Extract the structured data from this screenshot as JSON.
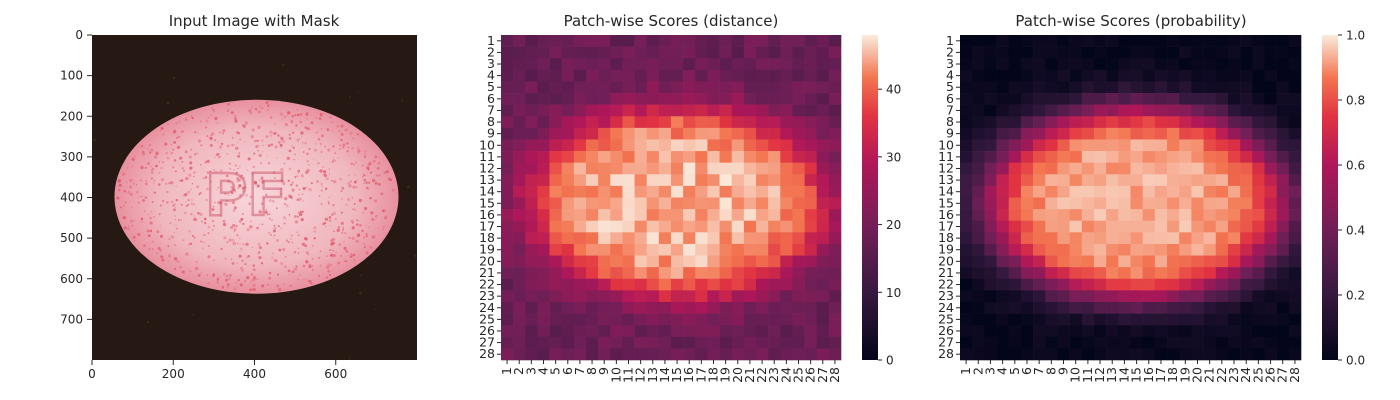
{
  "figure": {
    "titles": {
      "left": "Input Image with Mask",
      "middle": "Patch-wise Scores (distance)",
      "right": "Patch-wise Scores (probability)"
    }
  },
  "chart_data": [
    {
      "type": "image",
      "title": "Input Image with Mask",
      "xlabel": "",
      "ylabel": "",
      "xlim": [
        0,
        800
      ],
      "ylim": [
        800,
        0
      ],
      "x_ticks": [
        "0",
        "200",
        "400",
        "600"
      ],
      "x_tick_values": [
        0,
        200,
        400,
        600
      ],
      "y_ticks": [
        "0",
        "100",
        "200",
        "300",
        "400",
        "500",
        "600",
        "700"
      ],
      "y_tick_values": [
        0,
        100,
        200,
        300,
        400,
        500,
        600,
        700
      ],
      "content": {
        "object": "pink ellipse on dark background",
        "object_center": [
          405,
          398
        ],
        "object_radii": [
          350,
          238
        ],
        "embossed_text": "PF",
        "colors": {
          "background": "#261812",
          "object": "#f1b8bf",
          "speckle": "#e0485f"
        }
      },
      "grid": false
    },
    {
      "type": "heatmap",
      "title": "Patch-wise Scores (distance)",
      "rows": 28,
      "cols": 28,
      "x_ticks": [
        "1",
        "2",
        "3",
        "4",
        "5",
        "6",
        "7",
        "8",
        "9",
        "10",
        "11",
        "12",
        "13",
        "14",
        "15",
        "16",
        "17",
        "18",
        "19",
        "20",
        "21",
        "22",
        "23",
        "24",
        "25",
        "26",
        "27",
        "28"
      ],
      "y_ticks": [
        "1",
        "2",
        "3",
        "4",
        "5",
        "6",
        "7",
        "8",
        "9",
        "10",
        "11",
        "12",
        "13",
        "14",
        "15",
        "16",
        "17",
        "18",
        "19",
        "20",
        "21",
        "22",
        "23",
        "24",
        "25",
        "26",
        "27",
        "28"
      ],
      "value_model": {
        "description": "high inside the elliptical pill region, lower toward edges",
        "center": [
          14.5,
          14.5
        ],
        "radii": [
          12.2,
          8.2
        ],
        "inside_value": 45,
        "outside_value": 18,
        "noise": 3
      },
      "colorbar": {
        "min": 0,
        "max": 48,
        "ticks": [
          0,
          10,
          20,
          30,
          40
        ],
        "colormap": "rocket"
      },
      "grid": false
    },
    {
      "type": "heatmap",
      "title": "Patch-wise Scores (probability)",
      "rows": 28,
      "cols": 28,
      "x_ticks": [
        "1",
        "2",
        "3",
        "4",
        "5",
        "6",
        "7",
        "8",
        "9",
        "10",
        "11",
        "12",
        "13",
        "14",
        "15",
        "16",
        "17",
        "18",
        "19",
        "20",
        "21",
        "22",
        "23",
        "24",
        "25",
        "26",
        "27",
        "28"
      ],
      "y_ticks": [
        "1",
        "2",
        "3",
        "4",
        "5",
        "6",
        "7",
        "8",
        "9",
        "10",
        "11",
        "12",
        "13",
        "14",
        "15",
        "16",
        "17",
        "18",
        "19",
        "20",
        "21",
        "22",
        "23",
        "24",
        "25",
        "26",
        "27",
        "28"
      ],
      "value_model": {
        "description": "near 1.0 inside the elliptical pill region, near 0 outside",
        "center": [
          14.5,
          14.5
        ],
        "radii": [
          12.4,
          8.4
        ],
        "inside_value": 0.93,
        "outside_value": 0.01,
        "noise": 0.04
      },
      "colorbar": {
        "min": 0,
        "max": 1,
        "ticks": [
          0.0,
          0.2,
          0.4,
          0.6,
          0.8,
          1.0
        ],
        "tick_labels": [
          "0.0",
          "0.2",
          "0.4",
          "0.6",
          "0.8",
          "1.0"
        ],
        "colormap": "rocket"
      },
      "grid": false
    }
  ]
}
